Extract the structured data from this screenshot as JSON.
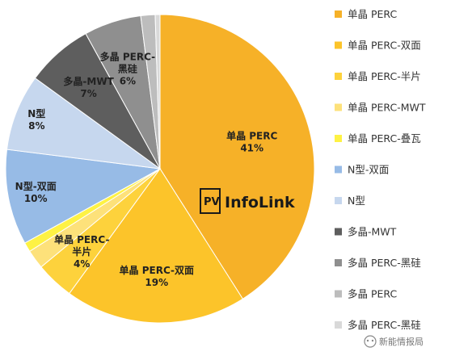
{
  "chart_data": {
    "type": "pie",
    "title": "",
    "series": [
      {
        "name": "单晶 PERC",
        "value": 41,
        "color": "#f6b128",
        "label_lines": [
          "单晶 PERC",
          "41%"
        ]
      },
      {
        "name": "单晶 PERC-双面",
        "value": 19,
        "color": "#fcc42a",
        "label_lines": [
          "单晶 PERC-双面",
          "19%"
        ]
      },
      {
        "name": "单晶 PERC-半片",
        "value": 4,
        "color": "#fdd23c",
        "label_lines": [
          "单晶 PERC-",
          "半片",
          "4%"
        ]
      },
      {
        "name": "单晶 PERC-MWT",
        "value": 2,
        "color": "#fde17a",
        "label_lines": []
      },
      {
        "name": "单晶 PERC-叠瓦",
        "value": 1,
        "color": "#fef244",
        "label_lines": []
      },
      {
        "name": "N型-双面",
        "value": 10,
        "color": "#97bbe6",
        "label_lines": [
          "N型-双面",
          "10%"
        ]
      },
      {
        "name": "N型",
        "value": 8,
        "color": "#c6d7ee",
        "label_lines": [
          "N型",
          "8%"
        ]
      },
      {
        "name": "多晶-MWT",
        "value": 7,
        "color": "#5e5e5e",
        "label_lines": [
          "多晶-MWT",
          "7%"
        ]
      },
      {
        "name": "多晶 PERC-黑硅",
        "value": 6,
        "color": "#8f8f8f",
        "label_lines": [
          "多晶 PERC-",
          "黑硅",
          "6%"
        ]
      },
      {
        "name": "多晶 PERC",
        "value": 1.5,
        "color": "#bdbdbd",
        "label_lines": []
      },
      {
        "name": "多晶 PERC-黑硅",
        "value": 0.5,
        "color": "#d9d9d9",
        "label_lines": []
      }
    ],
    "legend": {
      "placement": "right",
      "entries": [
        "单晶 PERC",
        "单晶 PERC-双面",
        "单晶 PERC-半片",
        "单晶 PERC-MWT",
        "单晶 PERC-叠瓦",
        "N型-双面",
        "N型",
        "多晶-MWT",
        "多晶 PERC-黑硅",
        "多晶 PERC",
        "多晶 PERC-黑硅"
      ]
    }
  },
  "logo": {
    "badge": "PV",
    "name": "InfoLink"
  },
  "watermark": {
    "text": "新能情报局"
  }
}
